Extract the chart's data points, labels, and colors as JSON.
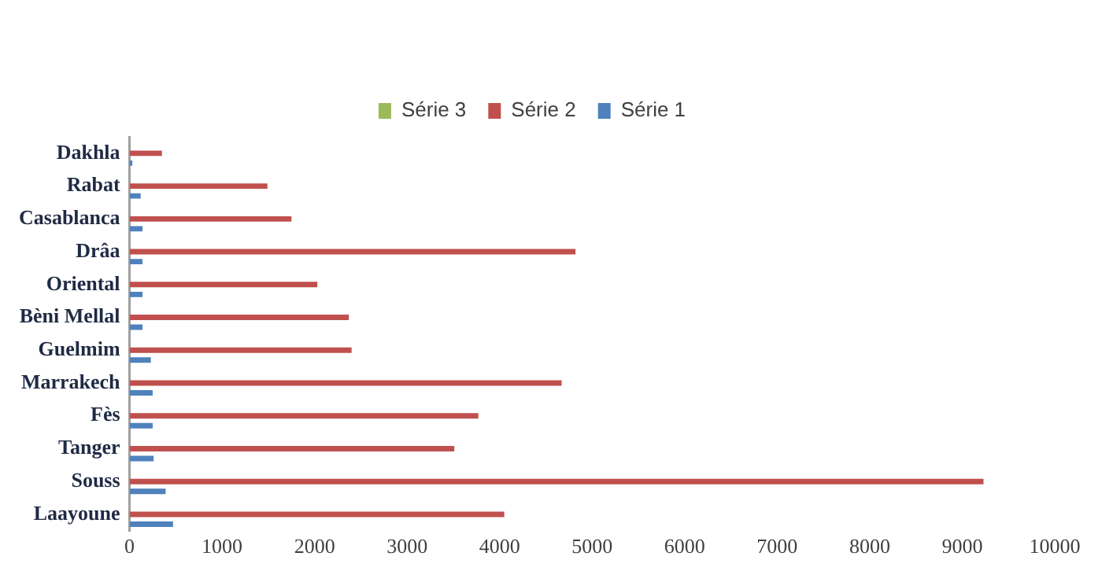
{
  "chart_data": {
    "type": "bar",
    "orientation": "horizontal",
    "categories": [
      "Dakhla",
      "Rabat",
      "Casablanca",
      "Drâa",
      "Oriental",
      "Bèni Mellal",
      "Guelmim",
      "Marrakech",
      "Fès",
      "Tanger",
      "Souss",
      "Laayoune"
    ],
    "series": [
      {
        "name": "Série 3",
        "color": "#9bbb59",
        "values": [
          0,
          0,
          0,
          0,
          0,
          0,
          0,
          0,
          0,
          0,
          0,
          0
        ]
      },
      {
        "name": "Série 2",
        "color": "#c0504d",
        "values": [
          350,
          1490,
          1750,
          4820,
          2030,
          2370,
          2400,
          4670,
          3770,
          3510,
          9230,
          4050
        ]
      },
      {
        "name": "Série 1",
        "color": "#4f81bd",
        "values": [
          30,
          120,
          140,
          140,
          140,
          140,
          230,
          250,
          250,
          260,
          390,
          470
        ]
      }
    ],
    "xlim": [
      0,
      10000
    ],
    "xticks": [
      0,
      1000,
      2000,
      3000,
      4000,
      5000,
      6000,
      7000,
      8000,
      9000,
      10000
    ],
    "grid": false,
    "legend": "top"
  }
}
